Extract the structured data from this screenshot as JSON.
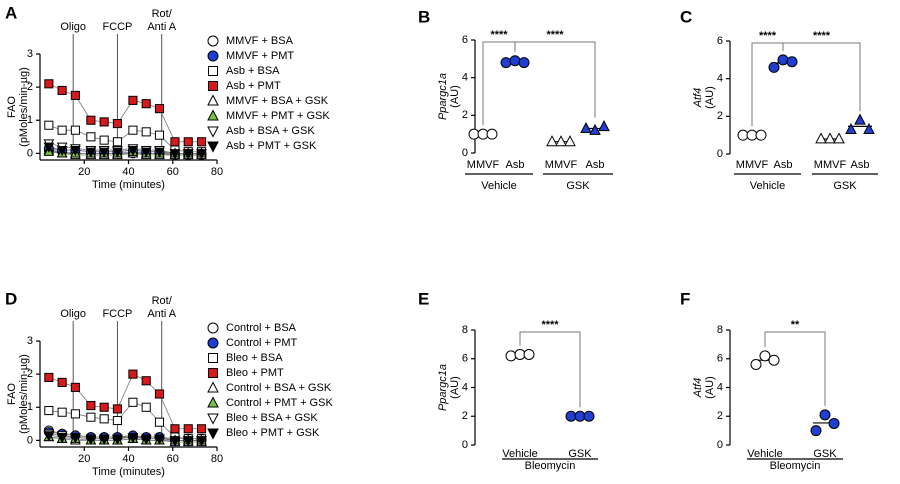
{
  "chart_data": [
    {
      "type": "line",
      "panel": "A",
      "ylabel_lines": [
        "FAO",
        "(pMoles/min-µg)"
      ],
      "xlabel": "Time (minutes)",
      "xlim": [
        0,
        80
      ],
      "xticks": [
        20,
        40,
        60,
        80
      ],
      "ylim": [
        -0.2,
        3
      ],
      "yticks": [
        0,
        1,
        2,
        3
      ],
      "injections": [
        {
          "lines": [
            "Oligo"
          ],
          "x": 15
        },
        {
          "lines": [
            "FCCP"
          ],
          "x": 35
        },
        {
          "lines": [
            "Rot/",
            "Anti A"
          ],
          "x": 55
        }
      ],
      "x": [
        4,
        10,
        16,
        23,
        29,
        35,
        42,
        48,
        54,
        61,
        67,
        73
      ],
      "series": [
        {
          "name": "MMVF + BSA",
          "marker": "circle",
          "color": "#ffffff",
          "values": [
            0.1,
            0.05,
            0,
            0,
            0,
            0,
            0,
            0,
            0,
            -0.05,
            -0.05,
            -0.05
          ]
        },
        {
          "name": "MMVF + PMT",
          "marker": "circle",
          "color": "#1f3fd1",
          "values": [
            0.15,
            0.1,
            0.1,
            0.05,
            0.05,
            0.05,
            0.1,
            0.05,
            0.05,
            0,
            0,
            0
          ]
        },
        {
          "name": "Asb + BSA",
          "marker": "square",
          "color": "#ffffff",
          "values": [
            0.85,
            0.7,
            0.7,
            0.5,
            0.4,
            0.35,
            0.7,
            0.65,
            0.55,
            0.1,
            0.05,
            0.05
          ]
        },
        {
          "name": "Asb + PMT",
          "marker": "square",
          "color": "#d7191c",
          "values": [
            2.1,
            1.9,
            1.75,
            1.0,
            0.95,
            0.9,
            1.6,
            1.5,
            1.35,
            0.35,
            0.35,
            0.35
          ]
        },
        {
          "name": "MMVF + BSA + GSK",
          "marker": "triangle-up",
          "color": "#ffffff",
          "values": [
            0.1,
            0,
            -0.05,
            -0.05,
            -0.05,
            -0.05,
            0,
            -0.05,
            -0.05,
            -0.05,
            -0.05,
            -0.05
          ]
        },
        {
          "name": "MMVF + PMT + GSK",
          "marker": "triangle-up",
          "color": "#7cc242",
          "values": [
            0.05,
            0,
            0,
            0,
            0,
            0,
            0.05,
            0,
            0,
            0,
            0,
            0
          ]
        },
        {
          "name": "Asb + BSA + GSK",
          "marker": "triangle-down",
          "color": "#ffffff",
          "values": [
            0.3,
            0.2,
            0.15,
            0.1,
            0.1,
            0.1,
            0.15,
            0.1,
            0.1,
            0,
            0,
            0
          ]
        },
        {
          "name": "Asb + PMT + GSK",
          "marker": "triangle-down",
          "color": "#000000",
          "values": [
            0.2,
            0.1,
            0.1,
            0.05,
            0.05,
            0.05,
            0.1,
            0.05,
            0.05,
            0,
            0,
            0
          ]
        }
      ]
    },
    {
      "type": "dot",
      "panel": "B",
      "ylabel_gene": "Ppargc1a",
      "ylabel_unit": "(AU)",
      "ylim": [
        0,
        6
      ],
      "yticks": [
        0,
        2,
        4,
        6
      ],
      "categories": [
        "MMVF",
        "Asb",
        "MMVF",
        "Asb"
      ],
      "groups": [
        "Vehicle",
        "GSK"
      ],
      "markers": [
        "circle",
        "circle",
        "triangle-up",
        "triangle-up"
      ],
      "colors": [
        "#ffffff",
        "#1f3fd1",
        "#ffffff",
        "#1f3fd1"
      ],
      "values": [
        [
          1,
          1,
          1
        ],
        [
          4.8,
          4.9,
          4.8
        ],
        [
          0.6,
          0.6,
          0.6
        ],
        [
          1.3,
          1.2,
          1.4
        ]
      ],
      "comparisons": [
        {
          "from": 0,
          "to": 1,
          "label": "****"
        },
        {
          "from": 1,
          "to": 3,
          "label": "****"
        }
      ]
    },
    {
      "type": "dot",
      "panel": "C",
      "ylabel_gene": "Atf4",
      "ylabel_unit": "(AU)",
      "ylim": [
        0,
        6
      ],
      "yticks": [
        0,
        2,
        4,
        6
      ],
      "categories": [
        "MMVF",
        "Asb",
        "MMVF",
        "Asb"
      ],
      "groups": [
        "Vehicle",
        "GSK"
      ],
      "markers": [
        "circle",
        "circle",
        "triangle-up",
        "triangle-up"
      ],
      "colors": [
        "#ffffff",
        "#1f3fd1",
        "#ffffff",
        "#1f3fd1"
      ],
      "values": [
        [
          1,
          1,
          1
        ],
        [
          4.6,
          5.0,
          4.9
        ],
        [
          0.8,
          0.8,
          0.8
        ],
        [
          1.3,
          1.8,
          1.3
        ]
      ],
      "comparisons": [
        {
          "from": 0,
          "to": 1,
          "label": "****"
        },
        {
          "from": 1,
          "to": 3,
          "label": "****"
        }
      ]
    },
    {
      "type": "line",
      "panel": "D",
      "ylabel_lines": [
        "FAO",
        "(pMoles/min-µg)"
      ],
      "xlabel": "Time (minutes)",
      "xlim": [
        0,
        80
      ],
      "xticks": [
        20,
        40,
        60,
        80
      ],
      "ylim": [
        -0.2,
        3
      ],
      "yticks": [
        0,
        1,
        2,
        3
      ],
      "injections": [
        {
          "lines": [
            "Oligo"
          ],
          "x": 15
        },
        {
          "lines": [
            "FCCP"
          ],
          "x": 35
        },
        {
          "lines": [
            "Rot/",
            "Anti A"
          ],
          "x": 55
        }
      ],
      "x": [
        4,
        10,
        16,
        23,
        29,
        35,
        42,
        48,
        54,
        61,
        67,
        73
      ],
      "series": [
        {
          "name": "Control + BSA",
          "marker": "circle",
          "color": "#ffffff",
          "values": [
            0.3,
            0.2,
            0.15,
            0.1,
            0.1,
            0.1,
            0.1,
            0.1,
            0.1,
            0,
            0,
            0
          ]
        },
        {
          "name": "Control + PMT",
          "marker": "circle",
          "color": "#1f3fd1",
          "values": [
            0.25,
            0.2,
            0.15,
            0.1,
            0.1,
            0.1,
            0.15,
            0.1,
            0.1,
            0.05,
            0.05,
            0.05
          ]
        },
        {
          "name": "Bleo + BSA",
          "marker": "square",
          "color": "#ffffff",
          "values": [
            0.9,
            0.85,
            0.8,
            0.7,
            0.65,
            0.6,
            1.15,
            1.0,
            0.55,
            0.1,
            0.05,
            0.05
          ]
        },
        {
          "name": "Bleo + PMT",
          "marker": "square",
          "color": "#d7191c",
          "values": [
            1.9,
            1.75,
            1.6,
            1.05,
            1.0,
            0.95,
            2.0,
            1.8,
            1.4,
            0.35,
            0.35,
            0.35
          ]
        },
        {
          "name": "Control + BSA + GSK",
          "marker": "triangle-up",
          "color": "#ffffff",
          "values": [
            0.1,
            0.05,
            0,
            0,
            0,
            0,
            0.05,
            0,
            0,
            -0.05,
            -0.05,
            -0.05
          ]
        },
        {
          "name": "Control + PMT + GSK",
          "marker": "triangle-up",
          "color": "#7cc242",
          "values": [
            0.1,
            0.05,
            0.05,
            0,
            0,
            0,
            0.05,
            0,
            0,
            0,
            0,
            0
          ]
        },
        {
          "name": "Bleo + BSA + GSK",
          "marker": "triangle-down",
          "color": "#ffffff",
          "values": [
            0.2,
            0.15,
            0.1,
            0.05,
            0.05,
            0.05,
            0.1,
            0.05,
            0.05,
            0,
            0,
            0
          ]
        },
        {
          "name": "Bleo + PMT + GSK",
          "marker": "triangle-down",
          "color": "#000000",
          "values": [
            0.15,
            0.1,
            0.1,
            0.05,
            0.05,
            0.05,
            0.1,
            0.05,
            0.05,
            0,
            0,
            0
          ]
        }
      ]
    },
    {
      "type": "dot",
      "panel": "E",
      "ylabel_gene": "Ppargc1a",
      "ylabel_unit": "(AU)",
      "ylim": [
        0,
        8
      ],
      "yticks": [
        0,
        2,
        4,
        6,
        8
      ],
      "categories": [
        "Vehicle",
        "GSK"
      ],
      "groups": [
        "Bleomycin"
      ],
      "markers": [
        "circle",
        "circle"
      ],
      "colors": [
        "#ffffff",
        "#1f3fd1"
      ],
      "values": [
        [
          6.2,
          6.3,
          6.3
        ],
        [
          2.0,
          2.0,
          2.0
        ]
      ],
      "comparisons": [
        {
          "from": 0,
          "to": 1,
          "label": "****"
        }
      ]
    },
    {
      "type": "dot",
      "panel": "F",
      "ylabel_gene": "Atf4",
      "ylabel_unit": "(AU)",
      "ylim": [
        0,
        8
      ],
      "yticks": [
        0,
        2,
        4,
        6,
        8
      ],
      "categories": [
        "Vehicle",
        "GSK"
      ],
      "groups": [
        "Bleomycin"
      ],
      "markers": [
        "circle",
        "circle"
      ],
      "colors": [
        "#ffffff",
        "#1f3fd1"
      ],
      "values": [
        [
          5.6,
          6.2,
          5.9
        ],
        [
          1.0,
          2.1,
          1.5
        ]
      ],
      "comparisons": [
        {
          "from": 0,
          "to": 1,
          "label": "**"
        }
      ]
    }
  ]
}
